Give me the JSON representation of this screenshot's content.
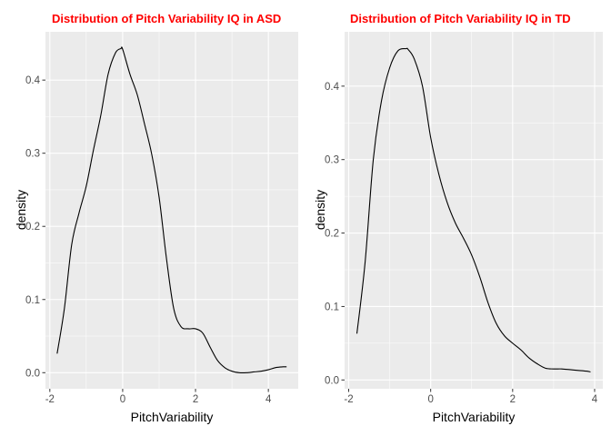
{
  "chart_data": [
    {
      "type": "line",
      "title": "Distribution of Pitch Variability IQ in ASD",
      "xlabel": "PitchVariability",
      "ylabel": "density",
      "xlim": [
        -2.12,
        4.82
      ],
      "ylim": [
        -0.022,
        0.466
      ],
      "xticks": [
        -2,
        0,
        2,
        4
      ],
      "xtick_labels": [
        "-2",
        "0",
        "2",
        "4"
      ],
      "yticks": [
        0.0,
        0.1,
        0.2,
        0.3,
        0.4
      ],
      "ytick_labels": [
        "0.0",
        "0.1",
        "0.2",
        "0.3",
        "0.4"
      ],
      "grid": true,
      "series": [
        {
          "x": [
            -1.8,
            -1.6,
            -1.4,
            -1.2,
            -1.0,
            -0.8,
            -0.6,
            -0.4,
            -0.2,
            -0.05,
            0.0,
            0.2,
            0.4,
            0.6,
            0.8,
            1.0,
            1.2,
            1.4,
            1.6,
            1.8,
            2.0,
            2.2,
            2.4,
            2.6,
            2.8,
            3.0,
            3.2,
            3.4,
            3.6,
            3.8,
            4.0,
            4.2,
            4.4,
            4.5
          ],
          "y": [
            0.026,
            0.088,
            0.175,
            0.218,
            0.255,
            0.305,
            0.352,
            0.408,
            0.437,
            0.443,
            0.442,
            0.408,
            0.38,
            0.34,
            0.298,
            0.24,
            0.157,
            0.088,
            0.063,
            0.06,
            0.06,
            0.054,
            0.035,
            0.017,
            0.007,
            0.002,
            0.0,
            0.0,
            0.001,
            0.002,
            0.004,
            0.007,
            0.008,
            0.008
          ]
        }
      ]
    },
    {
      "type": "line",
      "title": "Distribution of Pitch Variability IQ in TD",
      "xlabel": "PitchVariability",
      "ylabel": "density",
      "xlim": [
        -2.1,
        4.2
      ],
      "ylim": [
        -0.012,
        0.474
      ],
      "xticks": [
        -2,
        0,
        2,
        4
      ],
      "xtick_labels": [
        "-2",
        "0",
        "2",
        "4"
      ],
      "yticks": [
        0.0,
        0.1,
        0.2,
        0.3,
        0.4
      ],
      "ytick_labels": [
        "0.0",
        "0.1",
        "0.2",
        "0.3",
        "0.4"
      ],
      "grid": true,
      "series": [
        {
          "x": [
            -1.8,
            -1.6,
            -1.4,
            -1.2,
            -1.0,
            -0.8,
            -0.6,
            -0.55,
            -0.4,
            -0.2,
            0.0,
            0.2,
            0.4,
            0.6,
            0.8,
            1.0,
            1.2,
            1.4,
            1.6,
            1.8,
            2.0,
            2.2,
            2.4,
            2.6,
            2.8,
            3.0,
            3.2,
            3.4,
            3.6,
            3.8,
            3.9
          ],
          "y": [
            0.063,
            0.16,
            0.3,
            0.38,
            0.425,
            0.448,
            0.451,
            0.45,
            0.437,
            0.4,
            0.33,
            0.28,
            0.242,
            0.214,
            0.193,
            0.17,
            0.14,
            0.105,
            0.077,
            0.06,
            0.05,
            0.041,
            0.03,
            0.022,
            0.016,
            0.015,
            0.015,
            0.014,
            0.013,
            0.012,
            0.011
          ]
        }
      ]
    }
  ]
}
